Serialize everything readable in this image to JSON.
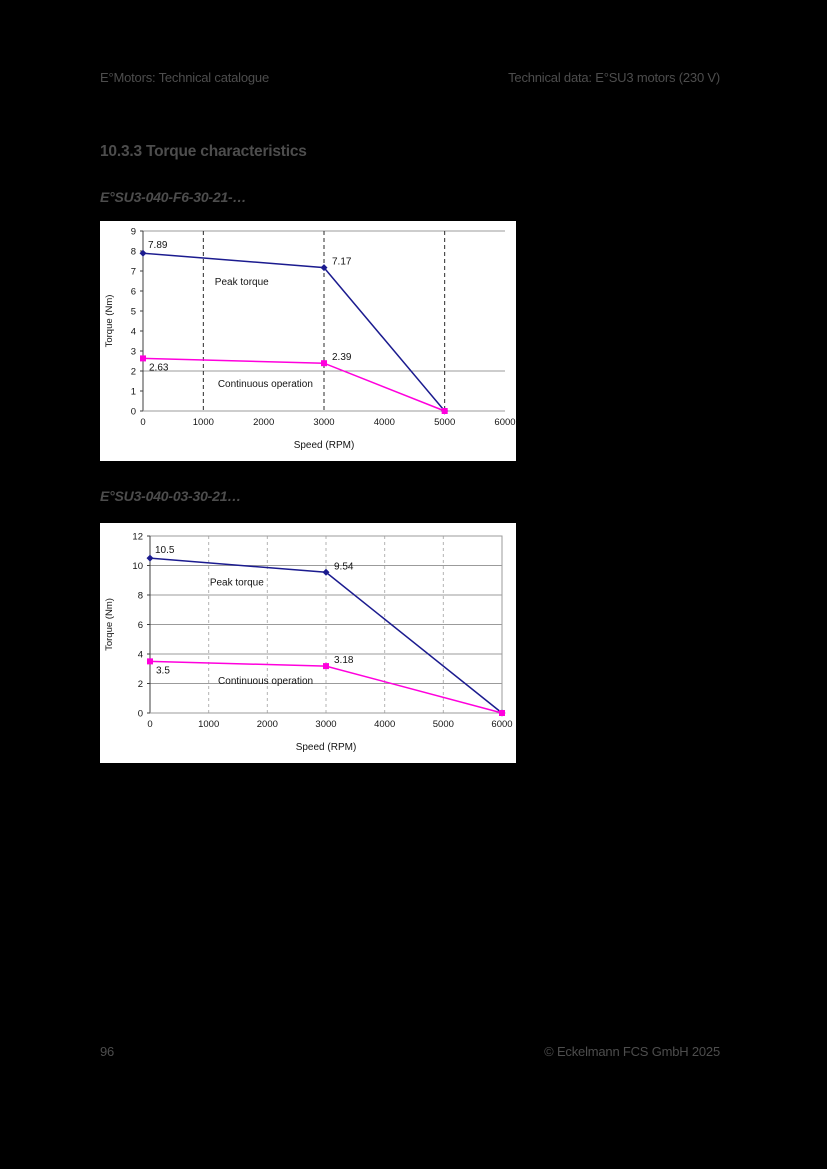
{
  "page": {
    "background": "#000000",
    "text_color": "#4d4d4d"
  },
  "header": {
    "left": "E°Motors: Technical catalogue",
    "right": "Technical data: E°SU3 motors (230 V)"
  },
  "section_title": "10.3.3 Torque characteristics",
  "figures": [
    {
      "subtitle": "E°SU3-040-F6-30-21-…"
    },
    {
      "subtitle": "E°SU3-040-03-30-21…"
    }
  ],
  "footer": {
    "page_number": "96",
    "copyright": "© Eckelmann FCS GmbH 2025"
  },
  "chart_data": [
    {
      "type": "line",
      "title": "",
      "xlabel": "Speed (RPM)",
      "ylabel": "Torque (Nm)",
      "xlim": [
        0,
        6000
      ],
      "ylim": [
        0,
        9
      ],
      "xticks": [
        0,
        1000,
        2000,
        3000,
        4000,
        5000,
        6000
      ],
      "yticks": [
        0,
        1,
        2,
        3,
        4,
        5,
        6,
        7,
        8,
        9
      ],
      "grid": {
        "vertical_dashed_x": [
          1000,
          3000,
          5000
        ],
        "horizontal_y": [
          2,
          9
        ],
        "frame": false
      },
      "legend_position": "none",
      "series": [
        {
          "name": "Peak torque",
          "color": "#1b1b8f",
          "marker": "diamond",
          "points": [
            {
              "x": 0,
              "y": 7.89,
              "label": "7.89",
              "label_pos": "above_right"
            },
            {
              "x": 3000,
              "y": 7.17,
              "label": "7.17",
              "label_pos": "right"
            },
            {
              "x": 5000,
              "y": 0
            }
          ]
        },
        {
          "name": "Continuous operation",
          "color": "#ff00dd",
          "marker": "square",
          "points": [
            {
              "x": 0,
              "y": 2.63,
              "label": "2.63",
              "label_pos": "below_right"
            },
            {
              "x": 3000,
              "y": 2.39,
              "label": "2.39",
              "label_pos": "right"
            },
            {
              "x": 5000,
              "y": 0
            }
          ]
        }
      ],
      "annotations": [
        {
          "text": "Peak torque",
          "x": 1190,
          "y": 6.3
        },
        {
          "text": "Continuous operation",
          "x": 1240,
          "y": 1.2
        }
      ]
    },
    {
      "type": "line",
      "title": "",
      "xlabel": "Speed (RPM)",
      "ylabel": "Torque (Nm)",
      "xlim": [
        0,
        6000
      ],
      "ylim": [
        0,
        12
      ],
      "xticks": [
        0,
        1000,
        2000,
        3000,
        4000,
        5000,
        6000
      ],
      "yticks": [
        0,
        2,
        4,
        6,
        8,
        10,
        12
      ],
      "grid": {
        "vertical_dashed_x": [
          1000,
          2000,
          3000,
          4000,
          5000
        ],
        "horizontal_y": [
          2,
          4,
          6,
          8,
          10,
          12
        ],
        "frame": true
      },
      "legend_position": "none",
      "series": [
        {
          "name": "Peak torque",
          "color": "#1b1b8f",
          "marker": "diamond",
          "points": [
            {
              "x": 0,
              "y": 10.5,
              "label": "10.5",
              "label_pos": "above_right"
            },
            {
              "x": 3000,
              "y": 9.54,
              "label": "9.54",
              "label_pos": "right"
            },
            {
              "x": 6000,
              "y": 0
            }
          ]
        },
        {
          "name": "Continuous operation",
          "color": "#ff00dd",
          "marker": "square",
          "points": [
            {
              "x": 0,
              "y": 3.5,
              "label": "3.5",
              "label_pos": "below_right"
            },
            {
              "x": 3000,
              "y": 3.18,
              "label": "3.18",
              "label_pos": "right"
            },
            {
              "x": 6000,
              "y": 0
            }
          ]
        }
      ],
      "annotations": [
        {
          "text": "Peak torque",
          "x": 1020,
          "y": 8.63
        },
        {
          "text": "Continuous operation",
          "x": 1160,
          "y": 1.96
        }
      ]
    }
  ]
}
